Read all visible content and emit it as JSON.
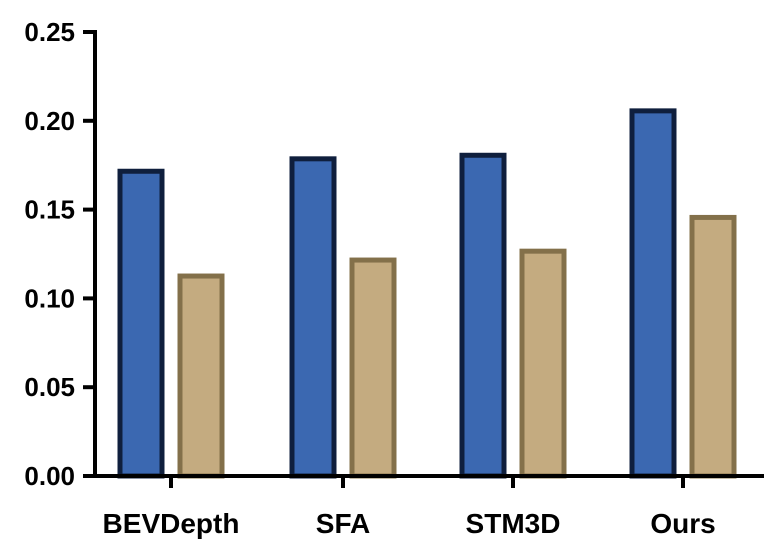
{
  "chart_data": {
    "type": "bar",
    "title": "",
    "xlabel": "",
    "ylabel": "",
    "categories": [
      "BEVDepth",
      "SFA",
      "STM3D",
      "Ours"
    ],
    "series": [
      {
        "values": [
          0.173,
          0.18,
          0.182,
          0.207
        ],
        "fill": "#3b68b1",
        "stroke": "#0f1f3d"
      },
      {
        "values": [
          0.114,
          0.123,
          0.128,
          0.147
        ],
        "fill": "#c4ab80",
        "stroke": "#83704a"
      }
    ],
    "ylim": [
      0,
      0.25
    ],
    "yticks": [
      "0.00",
      "0.05",
      "0.10",
      "0.15",
      "0.20",
      "0.25"
    ],
    "grid": false,
    "legend": "none"
  }
}
